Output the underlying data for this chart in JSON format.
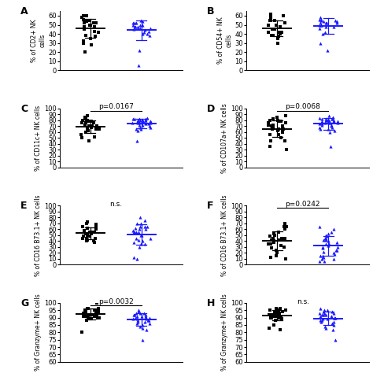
{
  "panels": [
    {
      "label": "A",
      "ylabel": "% of CD2+ NK\ncells",
      "ylim": [
        0,
        65
      ],
      "yticks": [
        0,
        10,
        20,
        30,
        40,
        50,
        60
      ],
      "ptext": "",
      "pline": false,
      "group1_data": [
        55,
        58,
        60,
        52,
        54,
        48,
        43,
        37,
        50,
        55,
        38,
        35,
        30,
        28,
        55,
        52,
        48,
        45,
        60,
        42,
        20,
        32,
        52,
        56,
        50
      ],
      "group2_data": [
        52,
        50,
        55,
        48,
        46,
        44,
        42,
        40,
        50,
        48,
        46,
        52,
        54,
        40,
        22,
        38,
        48,
        50,
        52,
        46,
        45,
        43,
        5
      ]
    },
    {
      "label": "B",
      "ylabel": "% of CD54+ NK\ncells",
      "ylim": [
        0,
        65
      ],
      "yticks": [
        0,
        10,
        20,
        30,
        40,
        50,
        60
      ],
      "ptext": "",
      "pline": false,
      "group1_data": [
        58,
        62,
        55,
        40,
        38,
        45,
        42,
        37,
        35,
        50,
        55,
        60,
        38,
        42,
        48,
        52,
        30,
        35,
        40,
        42,
        45,
        50,
        55
      ],
      "group2_data": [
        55,
        58,
        52,
        50,
        55,
        52,
        56,
        50,
        48,
        30,
        22,
        52,
        54,
        48,
        46,
        42,
        40,
        50,
        52,
        54,
        56
      ]
    },
    {
      "label": "C",
      "ylabel": "% of CD11c+ NK cells",
      "ylim": [
        0,
        100
      ],
      "yticks": [
        0,
        10,
        20,
        30,
        40,
        50,
        60,
        70,
        80,
        90,
        100
      ],
      "ptext": "p=0.0167",
      "pline": true,
      "group1_data": [
        68,
        70,
        75,
        65,
        80,
        78,
        72,
        68,
        52,
        50,
        65,
        70,
        75,
        80,
        85,
        88,
        60,
        55,
        45,
        70,
        75,
        65,
        62,
        78,
        82
      ],
      "group2_data": [
        78,
        80,
        82,
        75,
        78,
        80,
        82,
        84,
        75,
        72,
        68,
        65,
        75,
        80,
        82,
        78,
        76,
        74,
        62,
        45,
        80,
        82,
        78,
        76,
        74,
        72,
        70,
        68,
        65
      ]
    },
    {
      "label": "D",
      "ylabel": "% of CD107a+ NK cells",
      "ylim": [
        0,
        100
      ],
      "yticks": [
        0,
        10,
        20,
        30,
        40,
        50,
        60,
        70,
        80,
        90,
        100
      ],
      "ptext": "p=0.0068",
      "pline": true,
      "group1_data": [
        68,
        72,
        65,
        80,
        78,
        72,
        65,
        55,
        50,
        45,
        65,
        70,
        75,
        80,
        85,
        88,
        60,
        55,
        45,
        70,
        75,
        65,
        62,
        78,
        82,
        35,
        30
      ],
      "group2_data": [
        78,
        80,
        82,
        85,
        88,
        80,
        82,
        84,
        75,
        72,
        68,
        65,
        75,
        80,
        82,
        78,
        76,
        74,
        62,
        35,
        80,
        82,
        78,
        76,
        74,
        72,
        70,
        68,
        65,
        60
      ]
    },
    {
      "label": "E",
      "ylabel": "% of CD16 B73.1+ NK cells",
      "ylim": [
        0,
        100
      ],
      "yticks": [
        0,
        10,
        20,
        30,
        40,
        50,
        60,
        70,
        80,
        90,
        100
      ],
      "ptext": "n.s.",
      "pline": false,
      "group1_data": [
        70,
        68,
        72,
        65,
        55,
        52,
        48,
        45,
        40,
        38,
        55,
        60,
        65,
        50,
        45,
        42,
        55,
        58,
        62,
        48,
        52,
        40,
        45
      ],
      "group2_data": [
        65,
        70,
        75,
        80,
        60,
        55,
        50,
        45,
        40,
        35,
        30,
        55,
        60,
        65,
        70,
        42,
        38,
        35,
        65,
        55,
        50,
        45,
        55,
        58,
        62,
        10,
        12
      ]
    },
    {
      "label": "F",
      "ylabel": "% of CD16 B73.1+ NK cells",
      "ylim": [
        0,
        100
      ],
      "yticks": [
        0,
        10,
        20,
        30,
        40,
        50,
        60,
        70,
        80,
        90,
        100
      ],
      "ptext": "p=0.0242",
      "pline": true,
      "group1_data": [
        70,
        65,
        55,
        45,
        40,
        35,
        30,
        25,
        20,
        15,
        50,
        45,
        42,
        38,
        35,
        32,
        28,
        42,
        45,
        48,
        52,
        60,
        65,
        10,
        12
      ],
      "group2_data": [
        65,
        60,
        55,
        50,
        45,
        40,
        35,
        30,
        25,
        20,
        15,
        10,
        5,
        5,
        42,
        38,
        35,
        32,
        28,
        25,
        22,
        18,
        15,
        12,
        10,
        42,
        45,
        48,
        52,
        30
      ]
    },
    {
      "label": "G",
      "ylabel": "% of Granzyme+ NK cells",
      "ylim": [
        60,
        100
      ],
      "yticks": [
        60,
        65,
        70,
        75,
        80,
        85,
        90,
        95,
        100
      ],
      "ptext": "p=0.0032",
      "pline": true,
      "group1_data": [
        95,
        96,
        95,
        94,
        93,
        92,
        91,
        90,
        92,
        94,
        96,
        95,
        93,
        92,
        91,
        90,
        95,
        94,
        93,
        92,
        91,
        90,
        89,
        88,
        100,
        96,
        80
      ],
      "group2_data": [
        95,
        94,
        93,
        92,
        91,
        90,
        89,
        88,
        87,
        86,
        93,
        92,
        91,
        90,
        89,
        88,
        87,
        86,
        85,
        84,
        83,
        82,
        93,
        92,
        91,
        90,
        89,
        88,
        75
      ]
    },
    {
      "label": "H",
      "ylabel": "% of Granzyme+ NK cells",
      "ylim": [
        60,
        100
      ],
      "yticks": [
        60,
        65,
        70,
        75,
        80,
        85,
        90,
        95,
        100
      ],
      "ptext": "n.s.",
      "pline": false,
      "group1_data": [
        95,
        96,
        95,
        94,
        93,
        92,
        91,
        90,
        92,
        94,
        96,
        95,
        93,
        92,
        91,
        90,
        95,
        94,
        93,
        92,
        91,
        90,
        89,
        88,
        82,
        85,
        83
      ],
      "group2_data": [
        96,
        95,
        94,
        93,
        92,
        91,
        90,
        89,
        88,
        87,
        93,
        92,
        91,
        90,
        89,
        88,
        87,
        86,
        85,
        84,
        83,
        82,
        95,
        94,
        93,
        92,
        91,
        90,
        75
      ]
    }
  ],
  "male_color": "#000000",
  "female_color": "#1a1aff",
  "marker_size": 3,
  "tick_fontsize": 6,
  "ylabel_fontsize": 5.5,
  "ptext_fontsize": 6.5,
  "panel_label_fontsize": 9
}
